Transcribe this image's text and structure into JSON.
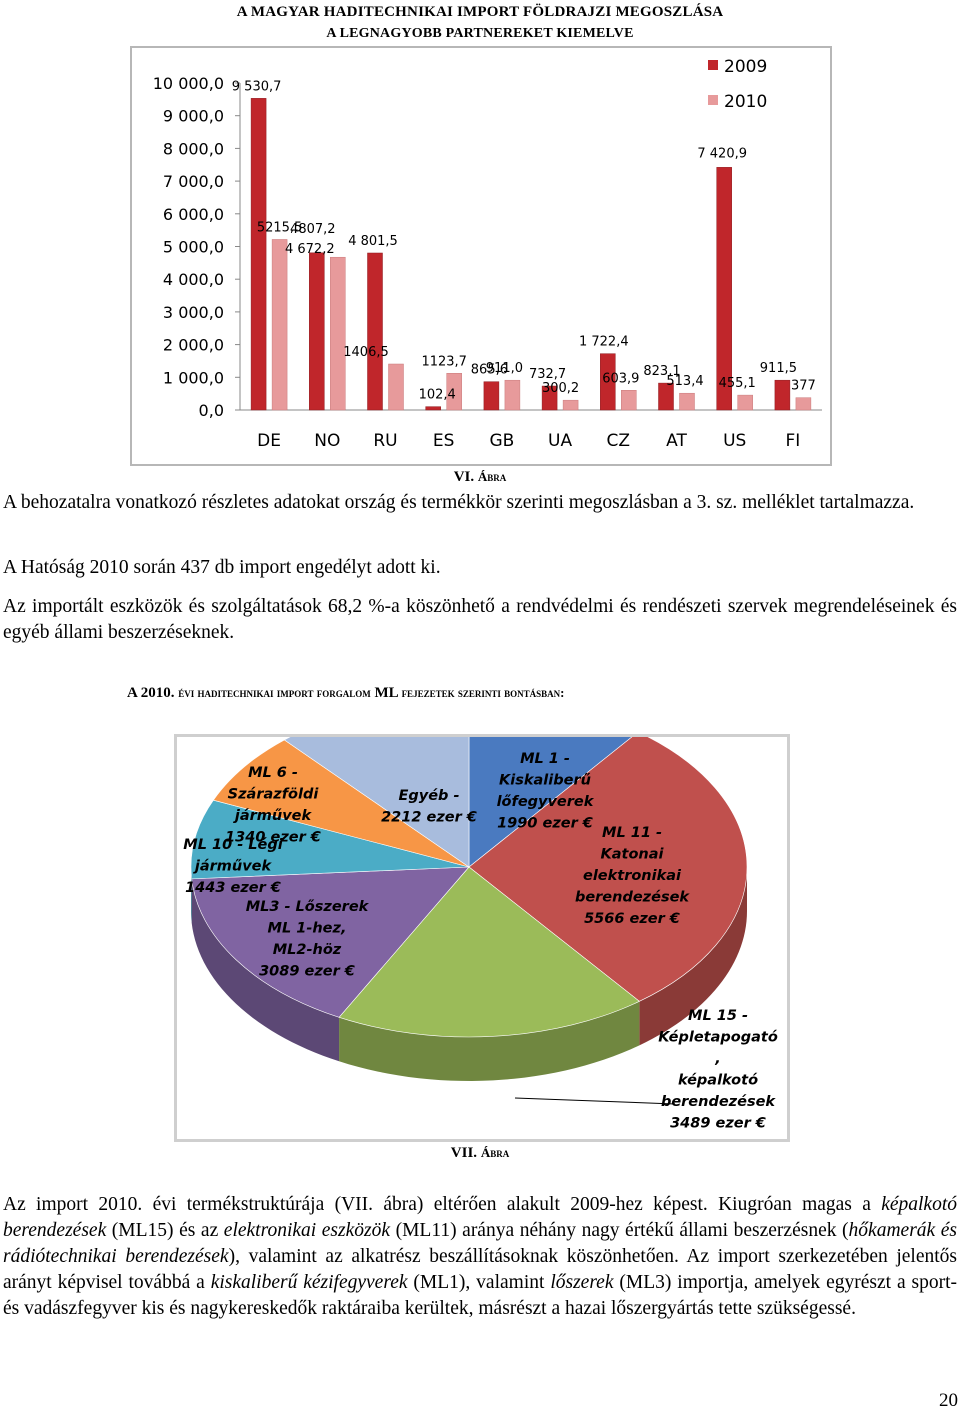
{
  "header": {
    "title_line1": "A MAGYAR HADITECHNIKAI IMPORT FÖLDRAJZI MEGOSZLÁSA",
    "title_line2": "A LEGNAGYOBB PARTNEREKET KIEMELVE"
  },
  "chart_data": [
    {
      "type": "bar",
      "categories": [
        "DE",
        "NO",
        "RU",
        "ES",
        "GB",
        "UA",
        "CZ",
        "AT",
        "US",
        "FI"
      ],
      "series": [
        {
          "name": "2009",
          "values": [
            9530.7,
            4807.2,
            4801.5,
            102.4,
            865.6,
            732.7,
            1722.4,
            823.1,
            7420.9,
            911.5
          ],
          "labels": [
            "9 530,7",
            "4807,2",
            "4 801,5",
            "102,4",
            "865,6",
            "732,7",
            "1 722,4",
            "823,1",
            "7 420,9",
            "911,5"
          ]
        },
        {
          "name": "2010",
          "values": [
            5215.5,
            4672.2,
            1406.5,
            1123.7,
            911.0,
            300.2,
            603.9,
            513.4,
            455.1,
            377
          ],
          "labels": [
            "5215,5",
            "4 672,2",
            "1406,5",
            "1123,7",
            "911,0",
            "300,2",
            "603,9",
            "513,4",
            "455,1",
            "377"
          ]
        }
      ],
      "yticks": [
        "0,0",
        "1 000,0",
        "2 000,0",
        "3 000,0",
        "4 000,0",
        "5 000,0",
        "6 000,0",
        "7 000,0",
        "8 000,0",
        "9 000,0",
        "10 000,0"
      ],
      "ylim": [
        0,
        10000
      ],
      "grid": false,
      "legend": "top-right",
      "colors": {
        "2009": "#c0262b",
        "2010": "#e79a9b"
      }
    },
    {
      "type": "pie",
      "slices": [
        {
          "label": "ML 1 - Kiskaliberű lőfegyverek 1990 ezer €",
          "value": 1990,
          "color": "#4a7ac0",
          "lines": [
            "ML 1 -",
            "Kiskaliberű",
            "lőfegyverek",
            "1990 ezer €"
          ]
        },
        {
          "label": "ML 11 - Katonai elektronikai berendezések 5566 ezer €",
          "value": 5566,
          "color": "#c0504d",
          "lines": [
            "ML 11 -",
            "Katonai",
            "elektronikai",
            "berendezések",
            "5566 ezer €"
          ]
        },
        {
          "label": "ML 15 - Képletapogató, képalkotó berendezések 3489 ezer €",
          "value": 3489,
          "color": "#9bbb59",
          "lines": [
            "ML 15 -",
            "Képletapogató",
            ",",
            "képalkotó",
            "berendezések",
            "3489 ezer €"
          ]
        },
        {
          "label": "ML3 - Lőszerek ML 1-hez, ML2-höz 3089 ezer €",
          "value": 3089,
          "color": "#8064a2",
          "lines": [
            "ML3 - Lőszerek",
            "ML 1-hez,",
            "ML2-höz",
            "3089 ezer €"
          ]
        },
        {
          "label": "ML 10 - Légi járművek 1443 ezer €",
          "value": 1443,
          "color": "#4bacc6",
          "lines": [
            "ML 10 - Légi",
            "járművek",
            "1443 ezer €"
          ]
        },
        {
          "label": "ML 6 - Szárazföldi járművek 1340 ezer €",
          "value": 1340,
          "color": "#f79646",
          "lines": [
            "ML 6 -",
            "Szárazföldi",
            "járművek",
            "1340 ezer €"
          ]
        },
        {
          "label": "Egyéb - 2212 ezer €",
          "value": 2212,
          "color": "#a8bcdd",
          "lines": [
            "Egyéb -",
            "2212 ezer €"
          ]
        }
      ]
    }
  ],
  "captions": {
    "fig6_num": "VI.",
    "fig6_word": "Ábra",
    "fig7_num": "VII.",
    "fig7_word": "Ábra"
  },
  "paragraphs": {
    "p1": "A behozatalra vonatkozó részletes adatokat ország és termékkör szerinti megoszlásban a 3. sz. melléklet tartalmazza.",
    "p2": "A Hatóság 2010 során 437 db import engedélyt adott ki.",
    "p3": "Az importált eszközök és szolgáltatások 68,2 %-a köszönhető a rendvédelmi és rendészeti szervek megrendeléseinek és egyéb állami beszerzéseknek.",
    "p4_a": "Az import 2010. évi termékstruktúrája (VII. ábra) eltérően alakult 2009-hez képest. Kiugróan magas a ",
    "p4_b": "képalkotó berendezések",
    "p4_c": " (ML15) és az ",
    "p4_d": "elektronikai eszközök",
    "p4_e": " (ML11) aránya néhány nagy értékű állami beszerzésnek (",
    "p4_f": "hőkamerák és rádiótechnikai berendezések",
    "p4_g": "), valamint az alkatrész beszállításoknak köszönhetően. Az import szerkezetében jelentős arányt képvisel továbbá a ",
    "p4_h": "kiskaliberű kézifegyverek",
    "p4_i": " (ML1), valamint ",
    "p4_j": "lőszerek",
    "p4_k": " (ML3) importja, amelyek egyrészt a sport- és vadászfegyver kis és nagykereskedők raktáraiba kerültek, másrészt a hazai lőszergyártás tette szükségessé."
  },
  "section_heading": {
    "a": "A 2010.",
    "b": "évi haditechnikai import forgalom",
    "c": "ML",
    "d": "fejezetek szerinti bontásban:"
  },
  "page_number": "20"
}
